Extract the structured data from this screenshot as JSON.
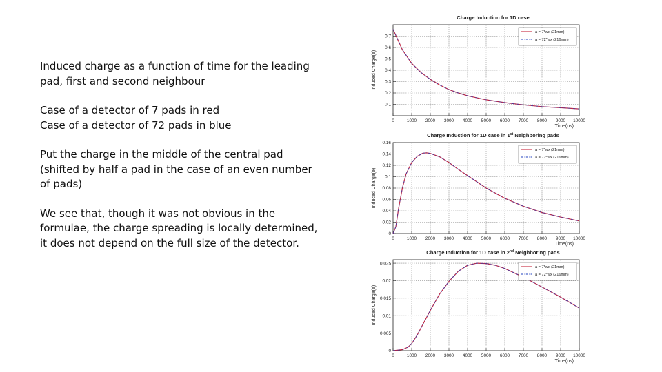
{
  "text": {
    "p1": "Induced charge as a function of time for the leading pad, first and second neighbour",
    "p2": "Case of a detector of 7 pads in red\nCase of a detector of 72 pads in blue",
    "p3": "Put the charge in the middle of the central pad (shifted by half a pad in the case of an even number of pads)",
    "p4": "We see that, though it was not obvious in the formulae, the charge spreading is locally determined, it does not depend on the full size of the detector."
  },
  "colors": {
    "series_a": "#c0102a",
    "series_b": "#1f3fbf",
    "grid": "#8a8a8a"
  },
  "chart_data": [
    {
      "type": "line",
      "title": "Charge Induction for 1D case",
      "title_sup": "",
      "title_suffix": "",
      "xlabel": "Time(ns)",
      "ylabel": "Induced Charge(e)",
      "xlim": [
        0,
        10000
      ],
      "ylim": [
        0,
        0.8
      ],
      "x_ticks": [
        0,
        1000,
        2000,
        3000,
        4000,
        5000,
        6000,
        7000,
        8000,
        9000,
        10000
      ],
      "y_ticks": [
        "0.1",
        "0.2",
        "0.3",
        "0.4",
        "0.5",
        "0.6",
        "0.7"
      ],
      "legend": [
        "a = 7*wx (21mm)",
        "a = 72*wx (216mm)"
      ],
      "x": [
        0,
        500,
        1000,
        1500,
        2000,
        2500,
        3000,
        3500,
        4000,
        5000,
        6000,
        7000,
        8000,
        9000,
        10000
      ],
      "series": [
        {
          "name": "a = 7*wx (21mm)",
          "values": [
            0.76,
            0.58,
            0.46,
            0.38,
            0.32,
            0.27,
            0.23,
            0.2,
            0.175,
            0.14,
            0.115,
            0.095,
            0.08,
            0.07,
            0.06
          ]
        },
        {
          "name": "a = 72*wx (216mm)",
          "values": [
            0.76,
            0.58,
            0.46,
            0.38,
            0.32,
            0.27,
            0.23,
            0.2,
            0.175,
            0.14,
            0.115,
            0.095,
            0.08,
            0.07,
            0.06
          ]
        }
      ]
    },
    {
      "type": "line",
      "title": "Charge Induction for 1D case in 1",
      "title_sup": "st",
      "title_suffix": " Neighboring pads",
      "xlabel": "Time(ns)",
      "ylabel": "Induced Charge(e)",
      "xlim": [
        0,
        10000
      ],
      "ylim": [
        0,
        0.16
      ],
      "x_ticks": [
        0,
        1000,
        2000,
        3000,
        4000,
        5000,
        6000,
        7000,
        8000,
        9000,
        10000
      ],
      "y_ticks": [
        "0",
        "0.02",
        "0.04",
        "0.06",
        "0.08",
        "0.1",
        "0.12",
        "0.14",
        "0.16"
      ],
      "legend": [
        "a = 7*wx (21mm)",
        "a = 72*wx (216mm)"
      ],
      "x": [
        0,
        150,
        300,
        500,
        700,
        1000,
        1300,
        1600,
        1800,
        2000,
        2500,
        3000,
        3500,
        4000,
        5000,
        6000,
        7000,
        8000,
        9000,
        10000
      ],
      "series": [
        {
          "name": "a = 7*wx (21mm)",
          "values": [
            0,
            0.012,
            0.045,
            0.08,
            0.105,
            0.125,
            0.136,
            0.1415,
            0.142,
            0.141,
            0.135,
            0.125,
            0.113,
            0.102,
            0.08,
            0.062,
            0.048,
            0.037,
            0.029,
            0.022
          ]
        },
        {
          "name": "a = 72*wx (216mm)",
          "values": [
            0,
            0.012,
            0.045,
            0.08,
            0.105,
            0.125,
            0.136,
            0.1415,
            0.142,
            0.141,
            0.135,
            0.125,
            0.113,
            0.102,
            0.08,
            0.062,
            0.048,
            0.037,
            0.029,
            0.022
          ]
        }
      ]
    },
    {
      "type": "line",
      "title": "Charge Induction for 1D case in 2",
      "title_sup": "nd",
      "title_suffix": " Neighboring pads",
      "xlabel": "Time(ns)",
      "ylabel": "Induced Charge(e)",
      "xlim": [
        0,
        10000
      ],
      "ylim": [
        0,
        0.026
      ],
      "x_ticks": [
        0,
        1000,
        2000,
        3000,
        4000,
        5000,
        6000,
        7000,
        8000,
        9000,
        10000
      ],
      "y_ticks": [
        "0",
        "0.005",
        "0.01",
        "0.015",
        "0.02",
        "0.025"
      ],
      "legend": [
        "a = 7*wx (21mm)",
        "a = 72*wx (216mm)"
      ],
      "x": [
        0,
        500,
        800,
        1000,
        1300,
        1600,
        2000,
        2500,
        3000,
        3500,
        4000,
        4500,
        5000,
        5500,
        6000,
        7000,
        8000,
        9000,
        10000
      ],
      "series": [
        {
          "name": "a = 7*wx (21mm)",
          "values": [
            0,
            0.0003,
            0.001,
            0.002,
            0.0045,
            0.0075,
            0.0115,
            0.0162,
            0.0198,
            0.0227,
            0.0244,
            0.025,
            0.0249,
            0.0244,
            0.0235,
            0.021,
            0.0182,
            0.0153,
            0.0122
          ]
        },
        {
          "name": "a = 72*wx (216mm)",
          "values": [
            0,
            0.0003,
            0.001,
            0.002,
            0.0045,
            0.0075,
            0.0115,
            0.0162,
            0.0198,
            0.0227,
            0.0244,
            0.025,
            0.0249,
            0.0244,
            0.0235,
            0.021,
            0.0182,
            0.0153,
            0.0122
          ]
        }
      ]
    }
  ]
}
